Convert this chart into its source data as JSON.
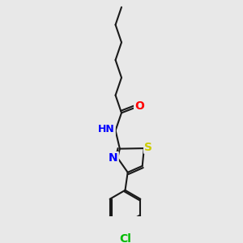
{
  "bg_color": "#e8e8e8",
  "bond_color": "#1a1a1a",
  "bond_width": 1.5,
  "atom_colors": {
    "O": "#ff0000",
    "N": "#0000ff",
    "S": "#cccc00",
    "Cl": "#00bb00",
    "H": "#4a9a9a"
  },
  "font_size": 8.5,
  "fig_size": [
    3.0,
    3.0
  ],
  "dpi": 100
}
